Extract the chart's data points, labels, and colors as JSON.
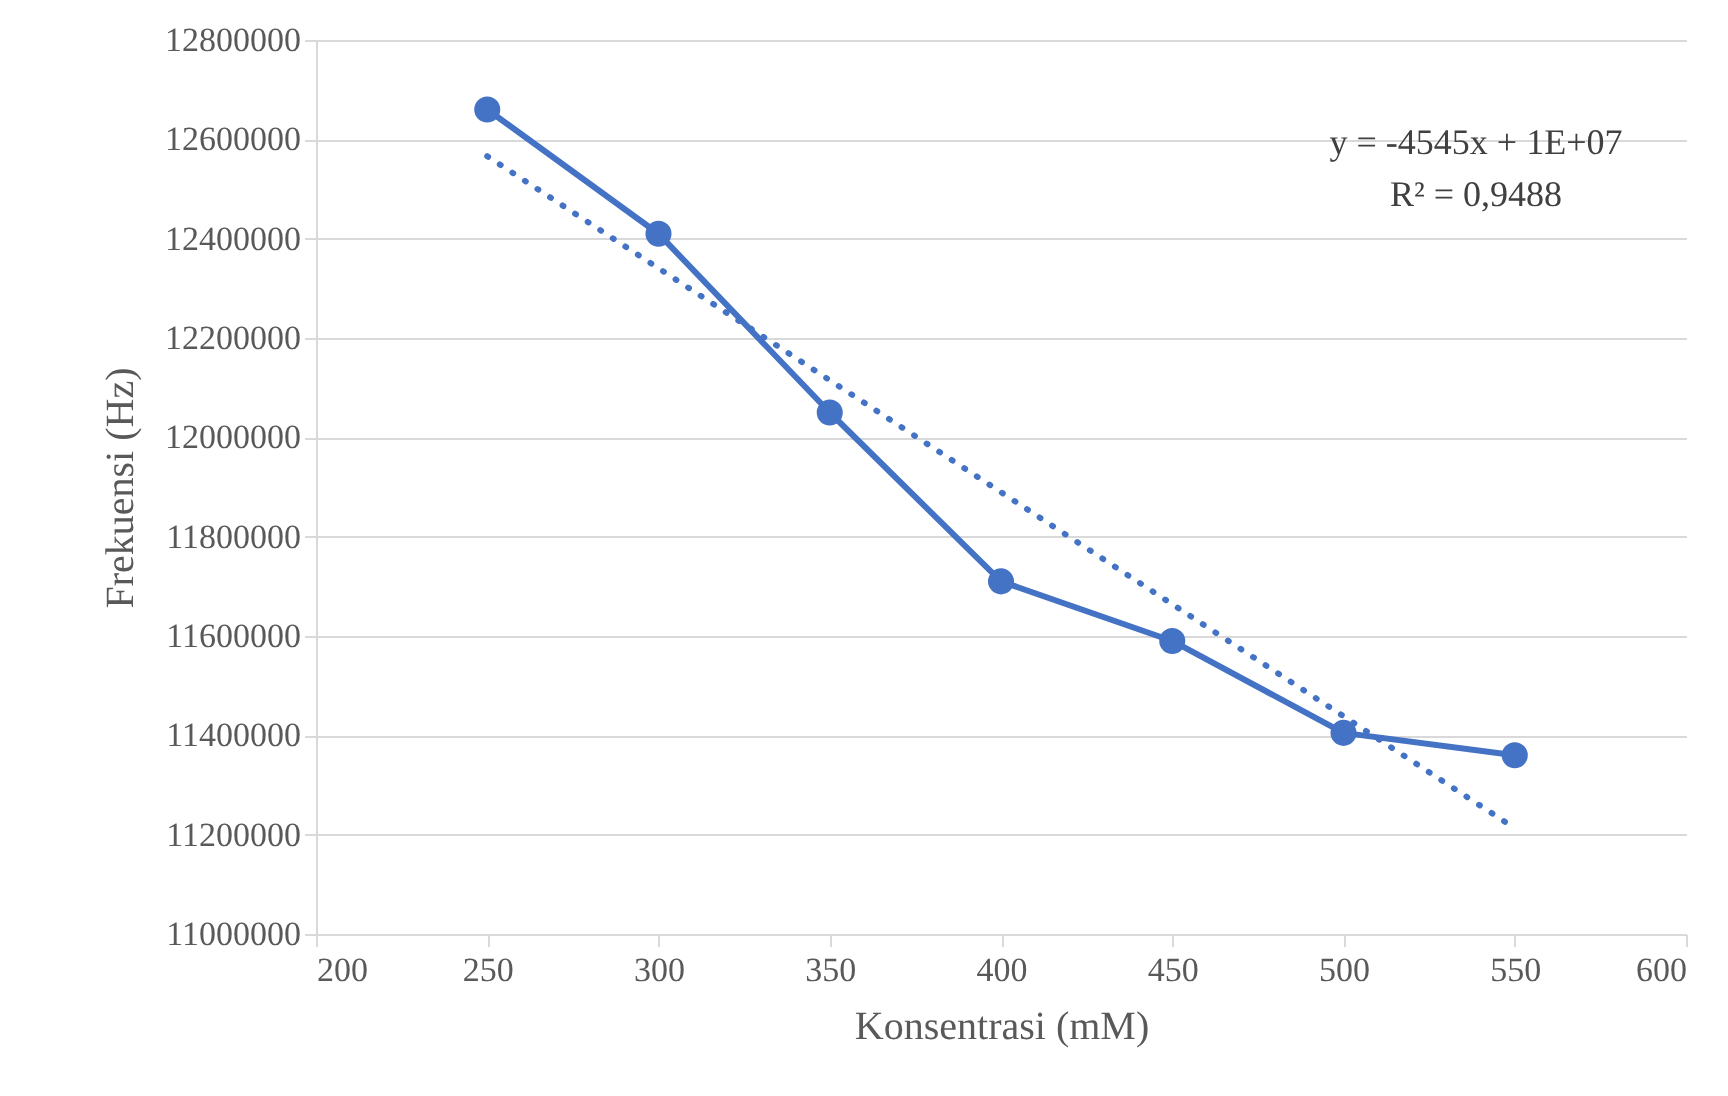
{
  "chart_data": {
    "type": "line",
    "xlabel": "Konsentrasi (mM)",
    "ylabel": "Frekuensi (Hz)",
    "xlim": [
      200,
      600
    ],
    "xticks": [
      200,
      250,
      300,
      350,
      400,
      450,
      500,
      550,
      600
    ],
    "ylim": [
      11000000,
      12800000
    ],
    "yticks": [
      11000000,
      11200000,
      11400000,
      11600000,
      11800000,
      12000000,
      12200000,
      12400000,
      12600000,
      12800000
    ],
    "grid": "y",
    "annotations": [
      "y = -4545x + 1E+07",
      "R² = 0,9488"
    ],
    "series": [
      {
        "type": "line",
        "color": "#4472c4",
        "marker": "circle",
        "line_style": "solid",
        "x": [
          250,
          300,
          350,
          400,
          450,
          500,
          550
        ],
        "values": [
          12660000,
          12410000,
          12050000,
          11710000,
          11590000,
          11405000,
          11360000
        ]
      },
      {
        "type": "line",
        "color": "#4472c4",
        "marker": "none",
        "line_style": "dotted",
        "x": [
          250,
          550
        ],
        "values": [
          12566000,
          11213000
        ]
      }
    ]
  }
}
